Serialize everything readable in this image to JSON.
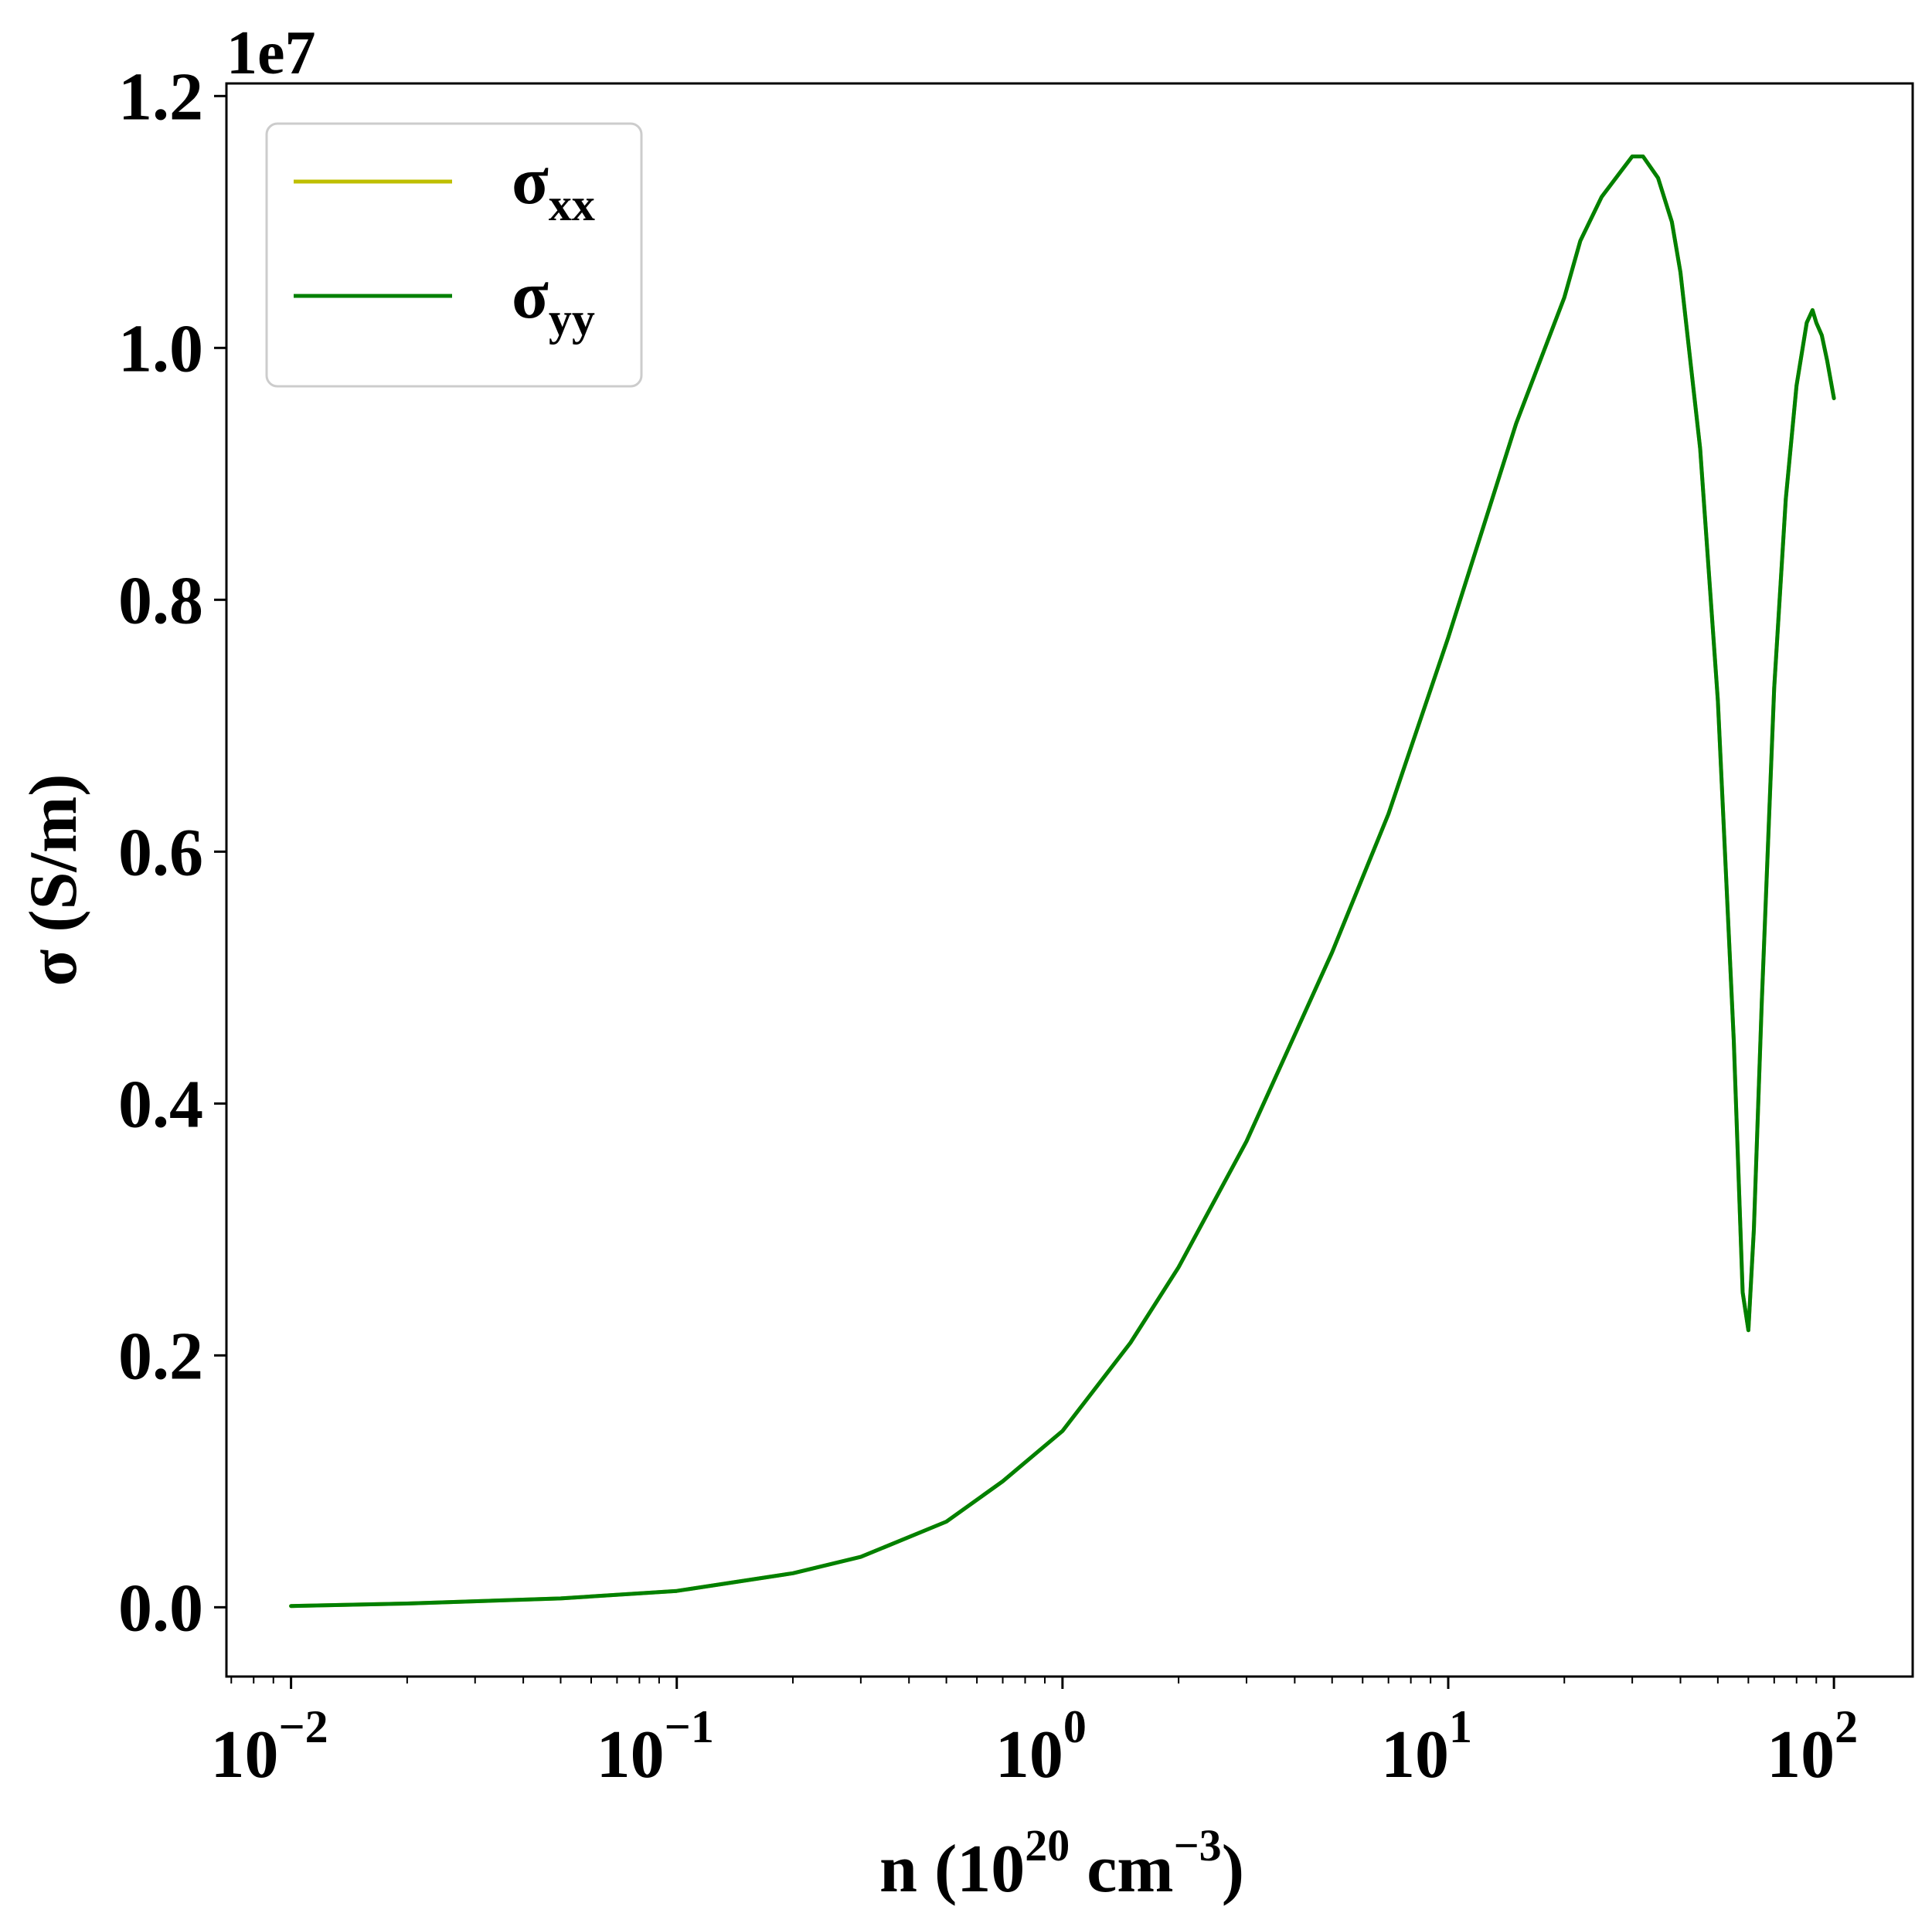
{
  "chart_data": {
    "type": "line",
    "title": "",
    "xlabel": {
      "text": "n (10",
      "sup1": "20",
      "mid": " cm",
      "sup2": "−3",
      "end": ")"
    },
    "ylabel": "σ (S/m)",
    "x_scale": "log",
    "y_offset_label": "1e7",
    "xlim": [
      0.0068,
      160
    ],
    "ylim": [
      -0.055,
      1.21
    ],
    "y_ticks": [
      {
        "value": 0.0,
        "label": "0.0"
      },
      {
        "value": 0.2,
        "label": "0.2"
      },
      {
        "value": 0.4,
        "label": "0.4"
      },
      {
        "value": 0.6,
        "label": "0.6"
      },
      {
        "value": 0.8,
        "label": "0.8"
      },
      {
        "value": 1.0,
        "label": "1.0"
      },
      {
        "value": 1.2,
        "label": "1.2"
      }
    ],
    "x_ticks": [
      {
        "value": 0.01,
        "base": "10",
        "exp": "−2"
      },
      {
        "value": 0.1,
        "base": "10",
        "exp": "−1"
      },
      {
        "value": 1,
        "base": "10",
        "exp": "0"
      },
      {
        "value": 10,
        "base": "10",
        "exp": "1"
      },
      {
        "value": 100,
        "base": "10",
        "exp": "2"
      }
    ],
    "grid": false,
    "legend_position": "top-left",
    "colors": {
      "sigma_xx": "#bfbf00",
      "sigma_yy": "#008000"
    },
    "series": [
      {
        "name": "σxx",
        "name_base": "σ",
        "name_sub": "xx",
        "color": "#bfbf00",
        "x": [
          0.01,
          0.02,
          0.05,
          0.1,
          0.2,
          0.3,
          0.5,
          0.7,
          1.0,
          1.5,
          2.0,
          3.0,
          5.0,
          7.0,
          10.0,
          15.0,
          20.0,
          22.0,
          25.0,
          28.0,
          30.0,
          32.0,
          35.0,
          38.0,
          40.0,
          45.0,
          50.0,
          55.0,
          58.0,
          60.0,
          62.0,
          65.0,
          70.0,
          75.0,
          80.0,
          85.0,
          88.0,
          90.0,
          93.0,
          96.0,
          100.0
        ],
        "y": [
          0.001,
          0.003,
          0.007,
          0.013,
          0.027,
          0.04,
          0.068,
          0.1,
          0.14,
          0.21,
          0.27,
          0.37,
          0.52,
          0.63,
          0.77,
          0.94,
          1.04,
          1.085,
          1.12,
          1.14,
          1.152,
          1.152,
          1.135,
          1.1,
          1.06,
          0.92,
          0.72,
          0.45,
          0.25,
          0.22,
          0.3,
          0.48,
          0.73,
          0.88,
          0.97,
          1.02,
          1.03,
          1.02,
          1.01,
          0.99,
          0.96
        ]
      },
      {
        "name": "σyy",
        "name_base": "σ",
        "name_sub": "yy",
        "color": "#008000",
        "x": [
          0.01,
          0.02,
          0.05,
          0.1,
          0.2,
          0.3,
          0.5,
          0.7,
          1.0,
          1.5,
          2.0,
          3.0,
          5.0,
          7.0,
          10.0,
          15.0,
          20.0,
          22.0,
          25.0,
          28.0,
          30.0,
          32.0,
          35.0,
          38.0,
          40.0,
          45.0,
          50.0,
          55.0,
          58.0,
          60.0,
          62.0,
          65.0,
          70.0,
          75.0,
          80.0,
          85.0,
          88.0,
          90.0,
          93.0,
          96.0,
          100.0
        ],
        "y": [
          0.001,
          0.003,
          0.007,
          0.013,
          0.027,
          0.04,
          0.068,
          0.1,
          0.14,
          0.21,
          0.27,
          0.37,
          0.52,
          0.63,
          0.77,
          0.94,
          1.04,
          1.085,
          1.12,
          1.14,
          1.152,
          1.152,
          1.135,
          1.1,
          1.06,
          0.92,
          0.72,
          0.45,
          0.25,
          0.22,
          0.3,
          0.48,
          0.73,
          0.88,
          0.97,
          1.02,
          1.03,
          1.02,
          1.01,
          0.99,
          0.96
        ]
      }
    ]
  }
}
